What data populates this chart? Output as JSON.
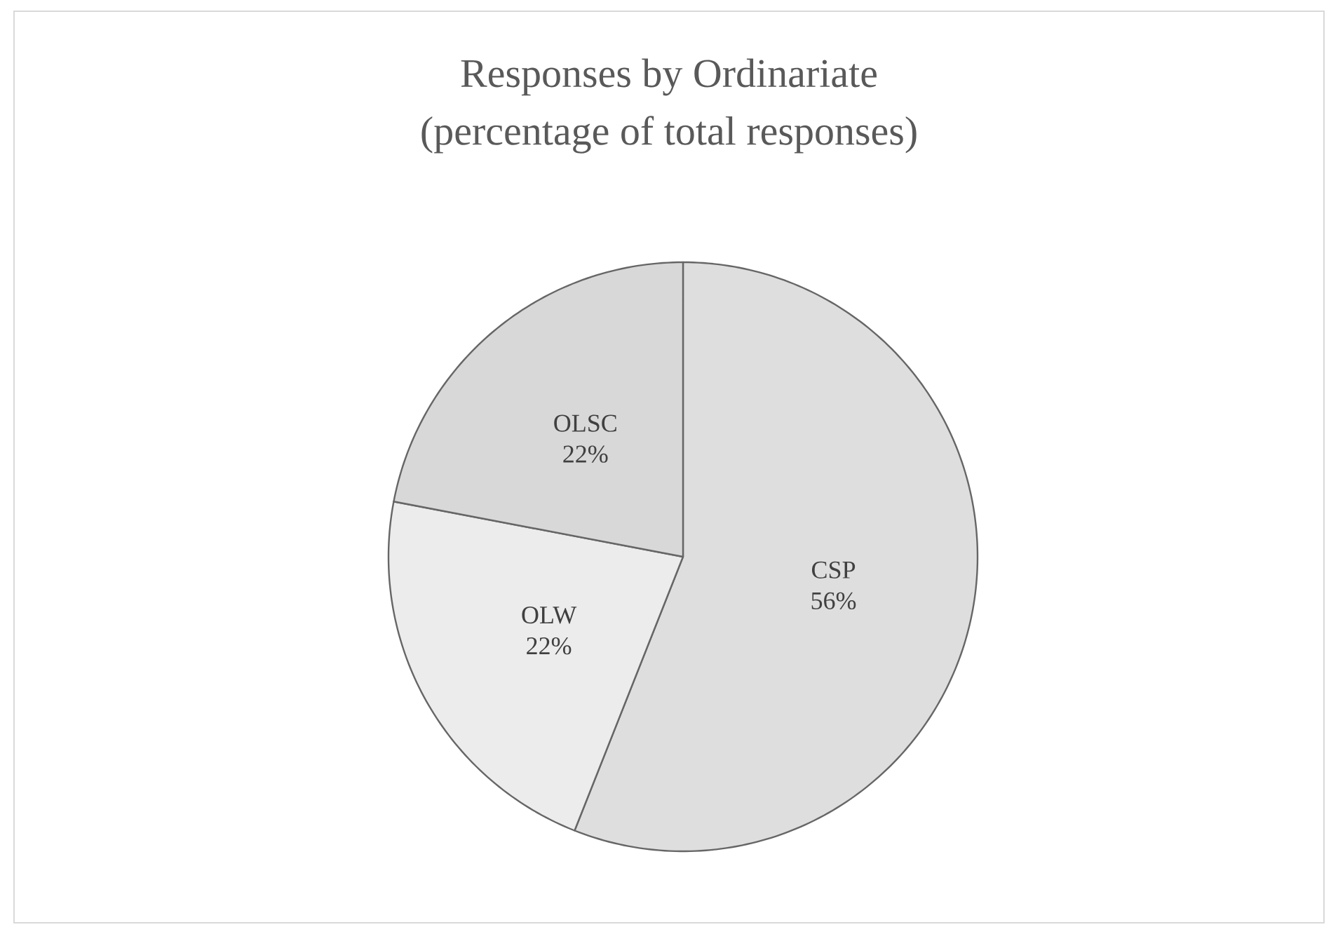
{
  "chart_data": {
    "type": "pie",
    "title": "Responses by Ordinariate",
    "subtitle": "(percentage of total responses)",
    "categories": [
      "CSP",
      "OLW",
      "OLSC"
    ],
    "values": [
      56,
      22,
      22
    ],
    "colors": [
      "#dedede",
      "#ececec",
      "#d8d8d8"
    ],
    "value_labels": [
      "56%",
      "22%",
      "22%"
    ]
  }
}
